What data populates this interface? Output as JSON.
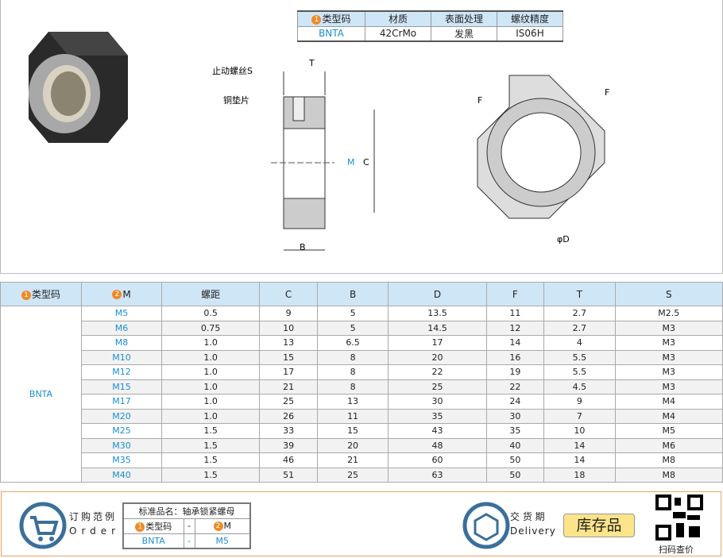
{
  "spec_table": {
    "headers": [
      "类型码",
      "材质",
      "表面处理",
      "螺纹精度"
    ],
    "row": [
      "BNTA",
      "42CrMo",
      "发黑",
      "IS06H"
    ]
  },
  "drawing": {
    "labels": {
      "stop_screw": "止动螺丝S",
      "copper_pad": "铜垫片",
      "T": "T",
      "B": "B",
      "C": "C",
      "M": "M",
      "F": "F",
      "D": "φD"
    }
  },
  "table": {
    "headers": [
      "类型码",
      "M",
      "螺距",
      "C",
      "B",
      "D",
      "F",
      "T",
      "S"
    ],
    "type_code": "BNTA",
    "rows": [
      [
        "M5",
        "0.5",
        "9",
        "5",
        "13.5",
        "11",
        "2.7",
        "M2.5"
      ],
      [
        "M6",
        "0.75",
        "10",
        "5",
        "14.5",
        "12",
        "2.7",
        "M3"
      ],
      [
        "M8",
        "1.0",
        "13",
        "6.5",
        "17",
        "14",
        "4",
        "M3"
      ],
      [
        "M10",
        "1.0",
        "15",
        "8",
        "20",
        "16",
        "5.5",
        "M3"
      ],
      [
        "M12",
        "1.0",
        "17",
        "8",
        "22",
        "19",
        "5.5",
        "M3"
      ],
      [
        "M15",
        "1.0",
        "21",
        "8",
        "25",
        "22",
        "4.5",
        "M3"
      ],
      [
        "M17",
        "1.0",
        "25",
        "13",
        "30",
        "24",
        "9",
        "M4"
      ],
      [
        "M20",
        "1.0",
        "26",
        "11",
        "35",
        "30",
        "7",
        "M4"
      ],
      [
        "M25",
        "1.5",
        "33",
        "15",
        "43",
        "35",
        "10",
        "M5"
      ],
      [
        "M30",
        "1.5",
        "39",
        "20",
        "48",
        "40",
        "14",
        "M6"
      ],
      [
        "M35",
        "1.5",
        "46",
        "21",
        "60",
        "50",
        "14",
        "M8"
      ],
      [
        "M40",
        "1.5",
        "51",
        "25",
        "63",
        "50",
        "18",
        "M8"
      ]
    ]
  },
  "order": {
    "title_cn": "订购范例",
    "title_en": "Order",
    "name": "标准品名：轴承锁紧螺母",
    "h1": "类型码",
    "dash": "-",
    "h2": "M",
    "v1": "BNTA",
    "v2": "M5"
  },
  "delivery": {
    "title_cn": "交 货 期",
    "title_en": "Delivery",
    "stock": "库存品",
    "qr_label": "扫码查价"
  },
  "colors": {
    "accent": "#1a8fd0",
    "header_bg": "#cfe6f7",
    "badge": "#f08a24",
    "stock_bg": "#fbe48a"
  }
}
